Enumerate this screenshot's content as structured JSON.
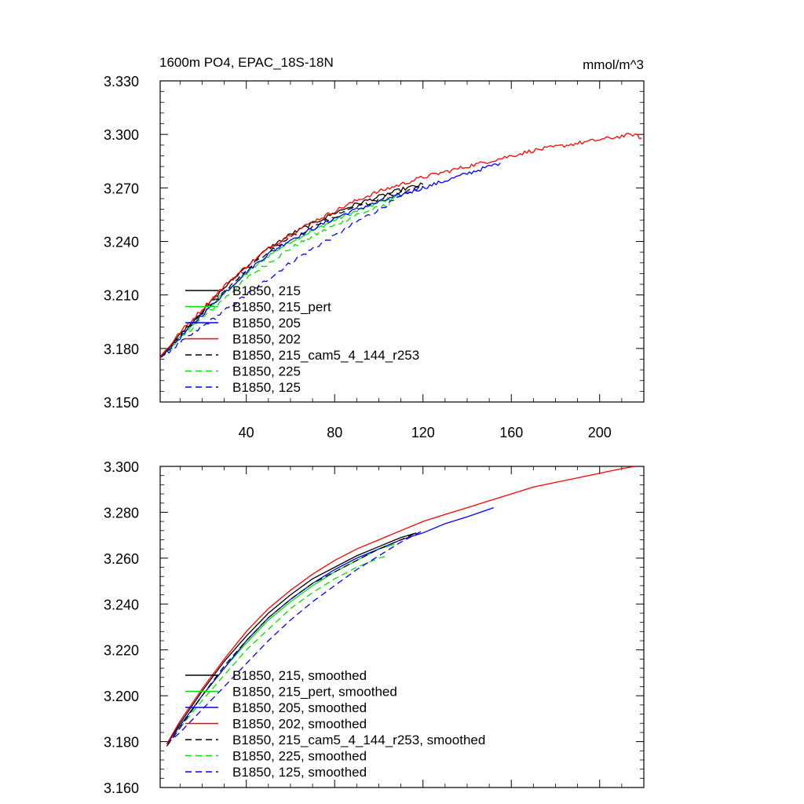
{
  "chart_data": [
    {
      "type": "line",
      "title": "1600m PO4, EPAC_18S-18N",
      "units": "mmol/m^3",
      "xlim": [
        1,
        220
      ],
      "ylim": [
        3.15,
        3.33
      ],
      "xticks": [
        40,
        80,
        120,
        160,
        200
      ],
      "yticks": [
        3.15,
        3.18,
        3.21,
        3.24,
        3.27,
        3.3,
        3.33
      ],
      "ytick_labels": [
        "3.150",
        "3.180",
        "3.210",
        "3.240",
        "3.270",
        "3.300",
        "3.330"
      ],
      "xtick_labels": [
        "40",
        "80",
        "120",
        "160",
        "200"
      ],
      "legend_position": "lower-left",
      "noisy": true,
      "series": [
        {
          "name": "B1850, 215",
          "color": "#000000",
          "dash": "solid",
          "x": [
            1,
            10,
            20,
            30,
            40,
            50,
            60,
            70,
            80,
            90,
            100,
            110,
            120
          ],
          "y": [
            3.175,
            3.188,
            3.201,
            3.214,
            3.226,
            3.236,
            3.244,
            3.25,
            3.256,
            3.261,
            3.265,
            3.269,
            3.272
          ]
        },
        {
          "name": "B1850, 215_pert",
          "color": "#00e000",
          "dash": "solid",
          "x": [
            1,
            10,
            20,
            30,
            40,
            50,
            60,
            70,
            80,
            90,
            100,
            110
          ],
          "y": [
            3.175,
            3.186,
            3.199,
            3.211,
            3.222,
            3.232,
            3.24,
            3.246,
            3.252,
            3.257,
            3.262,
            3.266
          ]
        },
        {
          "name": "B1850, 205",
          "color": "#0000ff",
          "dash": "solid",
          "x": [
            1,
            10,
            20,
            30,
            40,
            50,
            60,
            70,
            80,
            90,
            100,
            110,
            120,
            130,
            140,
            150,
            155
          ],
          "y": [
            3.175,
            3.186,
            3.199,
            3.211,
            3.223,
            3.233,
            3.241,
            3.247,
            3.253,
            3.258,
            3.262,
            3.266,
            3.27,
            3.274,
            3.278,
            3.282,
            3.284
          ]
        },
        {
          "name": "B1850, 202",
          "color": "#ff0000",
          "dash": "solid",
          "x": [
            1,
            10,
            20,
            30,
            40,
            50,
            60,
            70,
            80,
            90,
            100,
            110,
            120,
            130,
            140,
            150,
            160,
            170,
            180,
            190,
            200,
            210,
            215,
            219
          ],
          "y": [
            3.175,
            3.189,
            3.202,
            3.215,
            3.226,
            3.236,
            3.244,
            3.251,
            3.257,
            3.263,
            3.268,
            3.272,
            3.276,
            3.279,
            3.282,
            3.285,
            3.288,
            3.291,
            3.293,
            3.295,
            3.297,
            3.299,
            3.3,
            3.298
          ]
        },
        {
          "name": "B1850, 215_cam5_4_144_r253",
          "color": "#000000",
          "dash": "dashed",
          "x": [
            1,
            10,
            20,
            30,
            40,
            50,
            60,
            70,
            80,
            90,
            100,
            110,
            120
          ],
          "y": [
            3.175,
            3.187,
            3.2,
            3.212,
            3.224,
            3.234,
            3.242,
            3.248,
            3.254,
            3.259,
            3.264,
            3.268,
            3.271
          ]
        },
        {
          "name": "B1850, 225",
          "color": "#00e000",
          "dash": "dashed",
          "x": [
            1,
            10,
            20,
            30,
            40,
            50,
            60,
            70,
            80,
            90,
            100,
            105
          ],
          "y": [
            3.175,
            3.185,
            3.197,
            3.208,
            3.219,
            3.228,
            3.236,
            3.243,
            3.249,
            3.255,
            3.259,
            3.261
          ]
        },
        {
          "name": "B1850, 125",
          "color": "#0000ff",
          "dash": "dashed",
          "x": [
            1,
            10,
            20,
            30,
            40,
            50,
            60,
            70,
            80,
            90,
            100,
            110,
            120
          ],
          "y": [
            3.175,
            3.183,
            3.192,
            3.201,
            3.21,
            3.219,
            3.228,
            3.236,
            3.243,
            3.251,
            3.258,
            3.265,
            3.271
          ]
        }
      ]
    },
    {
      "type": "line",
      "xlim": [
        1,
        220
      ],
      "ylim": [
        3.16,
        3.3
      ],
      "xticks": [
        40,
        80,
        120,
        160,
        200
      ],
      "yticks": [
        3.16,
        3.18,
        3.2,
        3.22,
        3.24,
        3.26,
        3.28,
        3.3
      ],
      "ytick_labels": [
        "3.160",
        "3.180",
        "3.200",
        "3.220",
        "3.240",
        "3.260",
        "3.280",
        "3.300"
      ],
      "legend_position": "lower-left",
      "noisy": false,
      "series": [
        {
          "name": "B1850, 215, smoothed",
          "color": "#000000",
          "dash": "solid",
          "x": [
            4,
            10,
            20,
            30,
            40,
            50,
            60,
            70,
            80,
            90,
            100,
            110,
            117
          ],
          "y": [
            3.179,
            3.188,
            3.202,
            3.215,
            3.226,
            3.236,
            3.244,
            3.251,
            3.256,
            3.261,
            3.265,
            3.269,
            3.271
          ]
        },
        {
          "name": "B1850, 215_pert, smoothed",
          "color": "#00e000",
          "dash": "solid",
          "x": [
            4,
            10,
            20,
            30,
            40,
            50,
            60,
            70,
            80,
            90,
            100,
            107
          ],
          "y": [
            3.179,
            3.187,
            3.2,
            3.212,
            3.223,
            3.233,
            3.241,
            3.248,
            3.254,
            3.259,
            3.264,
            3.266
          ]
        },
        {
          "name": "B1850, 205, smoothed",
          "color": "#0000ff",
          "dash": "solid",
          "x": [
            4,
            10,
            20,
            30,
            40,
            50,
            60,
            70,
            80,
            90,
            100,
            110,
            120,
            130,
            140,
            152
          ],
          "y": [
            3.179,
            3.187,
            3.2,
            3.212,
            3.224,
            3.234,
            3.242,
            3.249,
            3.255,
            3.26,
            3.264,
            3.268,
            3.271,
            3.275,
            3.278,
            3.282
          ]
        },
        {
          "name": "B1850, 202, smoothed",
          "color": "#ff0000",
          "dash": "solid",
          "x": [
            4,
            10,
            20,
            30,
            40,
            50,
            60,
            70,
            80,
            90,
            100,
            110,
            120,
            130,
            140,
            150,
            160,
            170,
            180,
            190,
            200,
            210,
            216
          ],
          "y": [
            3.179,
            3.189,
            3.203,
            3.216,
            3.228,
            3.238,
            3.246,
            3.253,
            3.259,
            3.264,
            3.268,
            3.272,
            3.276,
            3.279,
            3.282,
            3.285,
            3.288,
            3.291,
            3.293,
            3.295,
            3.297,
            3.299,
            3.3
          ]
        },
        {
          "name": "B1850, 215_cam5_4_144_r253, smoothed",
          "color": "#000000",
          "dash": "dashed",
          "x": [
            4,
            10,
            20,
            30,
            40,
            50,
            60,
            70,
            80,
            90,
            100,
            110,
            117
          ],
          "y": [
            3.178,
            3.186,
            3.2,
            3.213,
            3.224,
            3.234,
            3.242,
            3.249,
            3.254,
            3.259,
            3.264,
            3.268,
            3.271
          ]
        },
        {
          "name": "B1850, 225, smoothed",
          "color": "#00e000",
          "dash": "dashed",
          "x": [
            4,
            10,
            20,
            30,
            40,
            50,
            60,
            70,
            80,
            90,
            100,
            104
          ],
          "y": [
            3.179,
            3.186,
            3.198,
            3.209,
            3.22,
            3.229,
            3.238,
            3.245,
            3.251,
            3.256,
            3.26,
            3.261
          ]
        },
        {
          "name": "B1850, 125, smoothed",
          "color": "#0000ff",
          "dash": "dashed",
          "x": [
            4,
            10,
            20,
            30,
            40,
            50,
            60,
            70,
            80,
            90,
            100,
            110,
            120
          ],
          "y": [
            3.179,
            3.184,
            3.194,
            3.204,
            3.214,
            3.224,
            3.233,
            3.241,
            3.248,
            3.255,
            3.261,
            3.267,
            3.272
          ]
        }
      ]
    }
  ]
}
